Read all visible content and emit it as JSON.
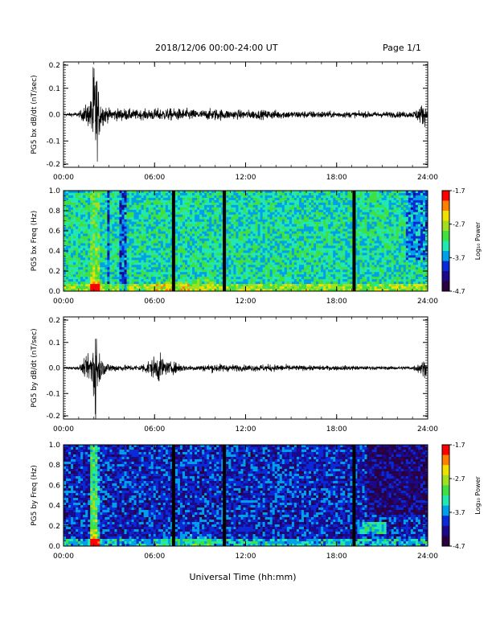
{
  "header": {
    "title": "2018/12/06  00:00-24:00 UT",
    "page": "Page 1/1"
  },
  "colors": {
    "axis": "#000000",
    "trace": "#000000",
    "colormap": [
      "#2a0040",
      "#1a0a8a",
      "#0a2ad8",
      "#00a0e8",
      "#20e8b0",
      "#40e040",
      "#a0e020",
      "#f0e000",
      "#ff8000",
      "#ff0000"
    ],
    "data_gap": "#000000"
  },
  "chart_data": [
    {
      "type": "line",
      "ylabel": "PG5 bx dB/dt (nT/sec)",
      "xlim": [
        0,
        24
      ],
      "ylim": [
        -0.2,
        0.2
      ],
      "yticks": [
        "0.2",
        "0.1",
        "0.0",
        "-0.1",
        "-0.2"
      ],
      "xticks": [
        "00:00",
        "06:00",
        "12:00",
        "18:00",
        "24:00"
      ],
      "grid": false,
      "series": [
        {
          "x": [
            0,
            1.0,
            1.8,
            1.95,
            2.05,
            2.15,
            2.3,
            2.5,
            3.0,
            4.0,
            5.0,
            6.0,
            7.0,
            8.0,
            9.0,
            10.0,
            11.0,
            12.0,
            13.0,
            14.0,
            15.0,
            16.0,
            17.0,
            18.0,
            19.0,
            20.0,
            21.0,
            22.0,
            23.0,
            23.8,
            24.0
          ],
          "envelope": [
            0.005,
            0.008,
            0.05,
            0.16,
            0.19,
            0.17,
            0.09,
            0.04,
            0.02,
            0.02,
            0.015,
            0.02,
            0.02,
            0.02,
            0.015,
            0.02,
            0.015,
            0.015,
            0.015,
            0.015,
            0.012,
            0.012,
            0.012,
            0.01,
            0.01,
            0.01,
            0.01,
            0.01,
            0.01,
            0.04,
            0.01
          ]
        }
      ]
    },
    {
      "type": "heatmap",
      "ylabel": "PG5 bx Freq (Hz)",
      "xlim": [
        0,
        24
      ],
      "ylim": [
        0.0,
        1.0
      ],
      "yticks": [
        "1.0",
        "0.8",
        "0.6",
        "0.4",
        "0.2",
        "0.0"
      ],
      "xticks": [
        "00:00",
        "06:00",
        "12:00",
        "18:00",
        "24:00"
      ],
      "colorbar": {
        "label": "Log₁₀ Power",
        "ticks": [
          "-1.7",
          "-2.7",
          "-3.7",
          "-4.7"
        ],
        "range": [
          -4.7,
          -1.7
        ]
      },
      "data_gaps_hours": [
        7.25,
        10.6,
        19.15
      ],
      "background_level": -3.9
    },
    {
      "type": "line",
      "ylabel": "PG5 by dB/dt (nT/sec)",
      "xlim": [
        0,
        24
      ],
      "ylim": [
        -0.2,
        0.2
      ],
      "yticks": [
        "0.2",
        "0.1",
        "0.0",
        "-0.1",
        "-0.2"
      ],
      "xticks": [
        "00:00",
        "06:00",
        "12:00",
        "18:00",
        "24:00"
      ],
      "grid": false,
      "series": [
        {
          "x": [
            0,
            1.0,
            1.8,
            1.95,
            2.05,
            2.15,
            2.3,
            2.5,
            3.0,
            4.0,
            5.0,
            5.8,
            6.3,
            6.8,
            7.5,
            8.0,
            9.0,
            10.0,
            11.0,
            12.0,
            13.0,
            14.0,
            15.0,
            16.0,
            17.0,
            18.0,
            19.0,
            20.0,
            21.0,
            22.0,
            23.0,
            23.8,
            24.0
          ],
          "envelope": [
            0.004,
            0.006,
            0.05,
            0.14,
            0.2,
            0.15,
            0.08,
            0.03,
            0.015,
            0.01,
            0.01,
            0.03,
            0.05,
            0.02,
            0.02,
            0.01,
            0.01,
            0.015,
            0.012,
            0.01,
            0.012,
            0.012,
            0.01,
            0.008,
            0.008,
            0.008,
            0.008,
            0.006,
            0.006,
            0.006,
            0.006,
            0.03,
            0.008
          ]
        }
      ]
    },
    {
      "type": "heatmap",
      "ylabel": "PG5 by Freq (Hz)",
      "xlim": [
        0,
        24
      ],
      "ylim": [
        0.0,
        1.0
      ],
      "yticks": [
        "1.0",
        "0.8",
        "0.6",
        "0.4",
        "0.2",
        "0.0"
      ],
      "xticks": [
        "00:00",
        "06:00",
        "12:00",
        "18:00",
        "24:00"
      ],
      "colorbar": {
        "label": "Log₁₀ Power",
        "ticks": [
          "-1.7",
          "-2.7",
          "-3.7",
          "-4.7"
        ],
        "range": [
          -4.7,
          -1.7
        ]
      },
      "data_gaps_hours": [
        7.25,
        10.6,
        19.15
      ],
      "background_level": -4.2
    }
  ],
  "xlabel": "Universal Time (hh:mm)"
}
